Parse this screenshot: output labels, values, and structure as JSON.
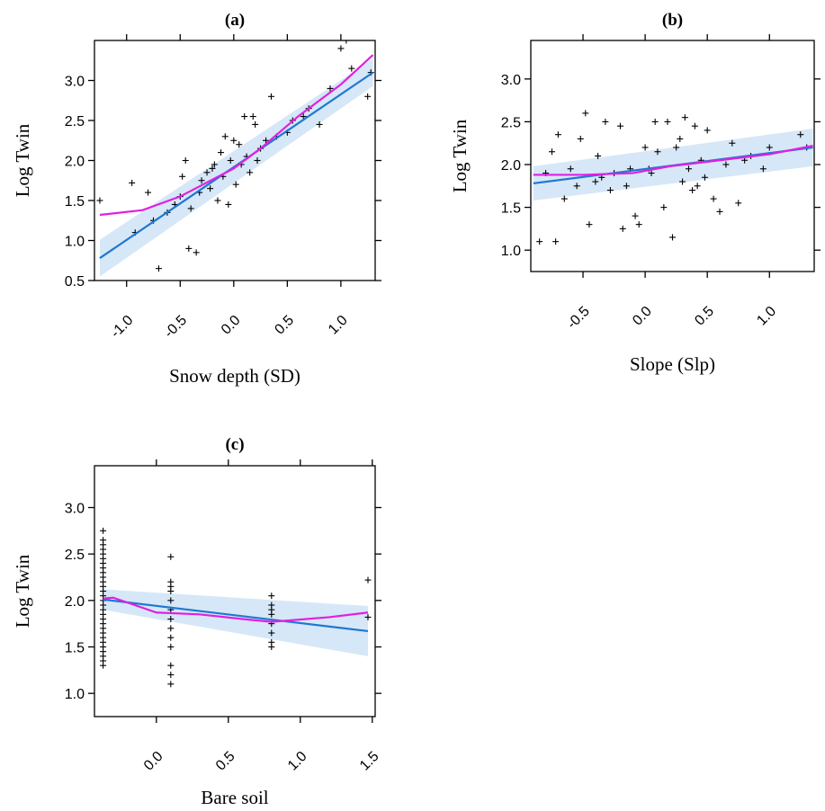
{
  "chart_data": [
    {
      "type": "scatter",
      "panel": "(a)",
      "title": "(a)",
      "xlabel": "Snow depth (SD)",
      "ylabel": "Log Twin",
      "xlim": [
        -1.3,
        1.32
      ],
      "ylim": [
        0.5,
        3.5
      ],
      "xticks": [
        -1.0,
        -0.5,
        0.0,
        0.5,
        1.0
      ],
      "xtick_labels": [
        "-1.0",
        "-0.5",
        "0.0",
        "0.5",
        "1.0"
      ],
      "yticks": [
        0.5,
        1.0,
        1.5,
        2.0,
        2.5,
        3.0
      ],
      "ytick_labels": [
        "0.5",
        "1.0",
        "1.5",
        "2.0",
        "2.5",
        "3.0"
      ],
      "grid": false,
      "points": [
        [
          -1.25,
          1.5
        ],
        [
          -0.95,
          1.72
        ],
        [
          -0.92,
          1.1
        ],
        [
          -0.8,
          1.6
        ],
        [
          -0.75,
          1.25
        ],
        [
          -0.7,
          0.65
        ],
        [
          -0.62,
          1.35
        ],
        [
          -0.55,
          1.45
        ],
        [
          -0.5,
          1.55
        ],
        [
          -0.48,
          1.8
        ],
        [
          -0.45,
          2.0
        ],
        [
          -0.42,
          0.9
        ],
        [
          -0.4,
          1.4
        ],
        [
          -0.35,
          0.85
        ],
        [
          -0.32,
          1.6
        ],
        [
          -0.3,
          1.75
        ],
        [
          -0.25,
          1.85
        ],
        [
          -0.22,
          1.65
        ],
        [
          -0.2,
          1.9
        ],
        [
          -0.18,
          1.95
        ],
        [
          -0.15,
          1.5
        ],
        [
          -0.12,
          2.1
        ],
        [
          -0.1,
          1.8
        ],
        [
          -0.08,
          2.3
        ],
        [
          -0.05,
          1.45
        ],
        [
          -0.03,
          2.0
        ],
        [
          0.0,
          2.25
        ],
        [
          0.02,
          1.7
        ],
        [
          0.05,
          2.2
        ],
        [
          0.07,
          1.95
        ],
        [
          0.1,
          2.55
        ],
        [
          0.12,
          2.05
        ],
        [
          0.15,
          1.85
        ],
        [
          0.18,
          2.55
        ],
        [
          0.2,
          2.45
        ],
        [
          0.22,
          2.0
        ],
        [
          0.25,
          2.15
        ],
        [
          0.3,
          2.25
        ],
        [
          0.35,
          2.8
        ],
        [
          0.4,
          2.3
        ],
        [
          0.5,
          2.35
        ],
        [
          0.55,
          2.5
        ],
        [
          0.65,
          2.55
        ],
        [
          0.7,
          2.65
        ],
        [
          0.8,
          2.45
        ],
        [
          0.9,
          2.9
        ],
        [
          1.0,
          3.4
        ],
        [
          1.05,
          3.5
        ],
        [
          1.1,
          3.15
        ],
        [
          1.25,
          2.8
        ],
        [
          1.28,
          3.1
        ]
      ],
      "series": [
        {
          "kind": "linear-fit",
          "color": "#1f78d1",
          "x": [
            -1.25,
            1.3
          ],
          "y": [
            0.78,
            3.1
          ],
          "ci_lower": [
            0.55,
            2.93
          ],
          "ci_upper": [
            1.01,
            3.27
          ]
        },
        {
          "kind": "smoother",
          "color": "#e020e0",
          "x": [
            -1.25,
            -0.85,
            -0.5,
            0.0,
            0.25,
            0.6,
            1.0,
            1.3
          ],
          "y": [
            1.32,
            1.38,
            1.55,
            1.9,
            2.15,
            2.55,
            2.95,
            3.32
          ]
        }
      ]
    },
    {
      "type": "scatter",
      "panel": "(b)",
      "title": "(b)",
      "xlabel": "Slope (Slp)",
      "ylabel": "Log Twin",
      "xlim": [
        -0.92,
        1.36
      ],
      "ylim": [
        0.75,
        3.45
      ],
      "xticks": [
        -0.5,
        0.0,
        0.5,
        1.0
      ],
      "xtick_labels": [
        "-0.5",
        "0.0",
        "0.5",
        "1.0"
      ],
      "yticks": [
        1.0,
        1.5,
        2.0,
        2.5,
        3.0
      ],
      "ytick_labels": [
        "1.0",
        "1.5",
        "2.0",
        "2.5",
        "3.0"
      ],
      "grid": false,
      "points": [
        [
          -0.85,
          1.1
        ],
        [
          -0.8,
          1.9
        ],
        [
          -0.75,
          2.15
        ],
        [
          -0.72,
          1.1
        ],
        [
          -0.7,
          2.35
        ],
        [
          -0.65,
          1.6
        ],
        [
          -0.6,
          1.95
        ],
        [
          -0.55,
          1.75
        ],
        [
          -0.52,
          2.3
        ],
        [
          -0.48,
          2.6
        ],
        [
          -0.45,
          1.3
        ],
        [
          -0.4,
          1.8
        ],
        [
          -0.38,
          2.1
        ],
        [
          -0.35,
          1.85
        ],
        [
          -0.32,
          2.5
        ],
        [
          -0.28,
          1.7
        ],
        [
          -0.25,
          1.9
        ],
        [
          -0.2,
          2.45
        ],
        [
          -0.18,
          1.25
        ],
        [
          -0.15,
          1.75
        ],
        [
          -0.12,
          1.95
        ],
        [
          -0.08,
          1.4
        ],
        [
          -0.05,
          1.3
        ],
        [
          0.0,
          2.2
        ],
        [
          0.03,
          1.95
        ],
        [
          0.05,
          1.9
        ],
        [
          0.08,
          2.5
        ],
        [
          0.1,
          2.15
        ],
        [
          0.15,
          1.5
        ],
        [
          0.18,
          2.5
        ],
        [
          0.22,
          1.15
        ],
        [
          0.25,
          2.2
        ],
        [
          0.28,
          2.3
        ],
        [
          0.3,
          1.8
        ],
        [
          0.32,
          2.55
        ],
        [
          0.35,
          1.95
        ],
        [
          0.38,
          1.7
        ],
        [
          0.4,
          2.45
        ],
        [
          0.42,
          1.75
        ],
        [
          0.45,
          2.05
        ],
        [
          0.48,
          1.85
        ],
        [
          0.5,
          2.4
        ],
        [
          0.55,
          1.6
        ],
        [
          0.6,
          1.45
        ],
        [
          0.65,
          2.0
        ],
        [
          0.7,
          2.25
        ],
        [
          0.75,
          1.55
        ],
        [
          0.8,
          2.05
        ],
        [
          0.85,
          2.1
        ],
        [
          0.95,
          1.95
        ],
        [
          1.0,
          2.2
        ],
        [
          1.25,
          2.35
        ],
        [
          1.3,
          2.2
        ]
      ],
      "series": [
        {
          "kind": "linear-fit",
          "color": "#1f78d1",
          "x": [
            -0.9,
            1.35
          ],
          "y": [
            1.78,
            2.2
          ],
          "ci_lower": [
            1.58,
            1.98
          ],
          "ci_upper": [
            1.98,
            2.42
          ]
        },
        {
          "kind": "smoother",
          "color": "#e020e0",
          "x": [
            -0.9,
            -0.5,
            -0.1,
            0.2,
            0.6,
            1.0,
            1.35
          ],
          "y": [
            1.88,
            1.88,
            1.9,
            1.98,
            2.05,
            2.12,
            2.22
          ]
        }
      ]
    },
    {
      "type": "scatter",
      "panel": "(c)",
      "title": "(c)",
      "xlabel": "Bare soil",
      "ylabel": "Log Twin",
      "xlim": [
        -0.43,
        1.52
      ],
      "ylim": [
        0.75,
        3.45
      ],
      "xticks": [
        0.0,
        0.5,
        1.0,
        1.5
      ],
      "xtick_labels": [
        "0.0",
        "0.5",
        "1.0",
        "1.5"
      ],
      "yticks": [
        1.0,
        1.5,
        2.0,
        2.5,
        3.0
      ],
      "ytick_labels": [
        "1.0",
        "1.5",
        "2.0",
        "2.5",
        "3.0"
      ],
      "grid": false,
      "points": [
        [
          -0.37,
          2.75
        ],
        [
          -0.37,
          2.65
        ],
        [
          -0.37,
          2.6
        ],
        [
          -0.37,
          2.55
        ],
        [
          -0.37,
          2.5
        ],
        [
          -0.37,
          2.45
        ],
        [
          -0.37,
          2.4
        ],
        [
          -0.37,
          2.35
        ],
        [
          -0.37,
          2.3
        ],
        [
          -0.37,
          2.25
        ],
        [
          -0.37,
          2.2
        ],
        [
          -0.37,
          2.15
        ],
        [
          -0.37,
          2.1
        ],
        [
          -0.37,
          2.05
        ],
        [
          -0.37,
          2.0
        ],
        [
          -0.37,
          1.95
        ],
        [
          -0.37,
          1.9
        ],
        [
          -0.37,
          1.85
        ],
        [
          -0.37,
          1.8
        ],
        [
          -0.37,
          1.75
        ],
        [
          -0.37,
          1.7
        ],
        [
          -0.37,
          1.65
        ],
        [
          -0.37,
          1.6
        ],
        [
          -0.37,
          1.55
        ],
        [
          -0.37,
          1.5
        ],
        [
          -0.37,
          1.45
        ],
        [
          -0.37,
          1.4
        ],
        [
          -0.37,
          1.35
        ],
        [
          -0.37,
          1.3
        ],
        [
          0.1,
          2.47
        ],
        [
          0.1,
          2.2
        ],
        [
          0.1,
          2.15
        ],
        [
          0.1,
          2.1
        ],
        [
          0.1,
          2.0
        ],
        [
          0.1,
          1.9
        ],
        [
          0.1,
          1.8
        ],
        [
          0.1,
          1.7
        ],
        [
          0.1,
          1.6
        ],
        [
          0.1,
          1.5
        ],
        [
          0.1,
          1.3
        ],
        [
          0.1,
          1.2
        ],
        [
          0.1,
          1.1
        ],
        [
          0.8,
          2.05
        ],
        [
          0.8,
          1.95
        ],
        [
          0.8,
          1.9
        ],
        [
          0.8,
          1.85
        ],
        [
          0.8,
          1.75
        ],
        [
          0.8,
          1.65
        ],
        [
          0.8,
          1.55
        ],
        [
          0.8,
          1.5
        ],
        [
          1.47,
          2.22
        ],
        [
          1.47,
          1.82
        ]
      ],
      "series": [
        {
          "kind": "linear-fit",
          "color": "#1f78d1",
          "x": [
            -0.37,
            1.47
          ],
          "y": [
            2.01,
            1.67
          ],
          "ci_lower": [
            1.9,
            1.4
          ],
          "ci_upper": [
            2.12,
            1.94
          ]
        },
        {
          "kind": "smoother",
          "color": "#e020e0",
          "x": [
            -0.37,
            -0.3,
            0.0,
            0.3,
            0.6,
            0.8,
            1.2,
            1.47
          ],
          "y": [
            2.02,
            2.03,
            1.87,
            1.85,
            1.8,
            1.77,
            1.82,
            1.87
          ]
        }
      ]
    }
  ]
}
